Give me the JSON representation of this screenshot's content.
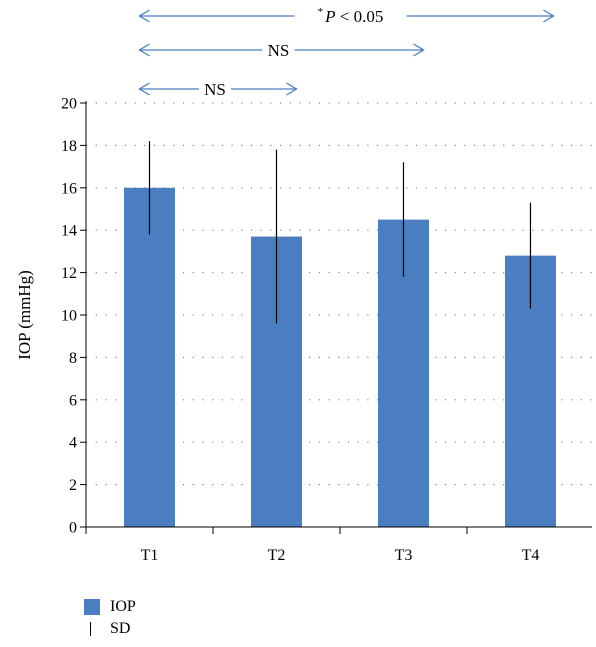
{
  "chart_data": {
    "type": "bar",
    "categories": [
      "T1",
      "T2",
      "T3",
      "T4"
    ],
    "series": [
      {
        "name": "IOP",
        "values": [
          16.0,
          13.7,
          14.5,
          12.8
        ],
        "sd": [
          2.2,
          4.1,
          2.7,
          2.5
        ]
      }
    ],
    "ylabel": "IOP  (mmHg)",
    "ylim": [
      0,
      20
    ],
    "yticks": [
      0,
      2,
      4,
      6,
      8,
      10,
      12,
      14,
      16,
      18,
      20
    ],
    "grid": "horizontal-dotted",
    "legend": [
      {
        "label": "IOP",
        "kind": "bar"
      },
      {
        "label": "SD",
        "kind": "errorbar"
      }
    ],
    "legend_position": "bottom-left",
    "comparisons": [
      {
        "from": "T1",
        "to": "T2",
        "label": "NS"
      },
      {
        "from": "T1",
        "to": "T3",
        "label": "NS"
      },
      {
        "from": "T1",
        "to": "T4",
        "label": "*P < 0.05"
      }
    ]
  },
  "colors": {
    "bar": "#4a7ec0",
    "arrow": "#4a7ec0",
    "error": "#000000",
    "grid": "#888888"
  }
}
